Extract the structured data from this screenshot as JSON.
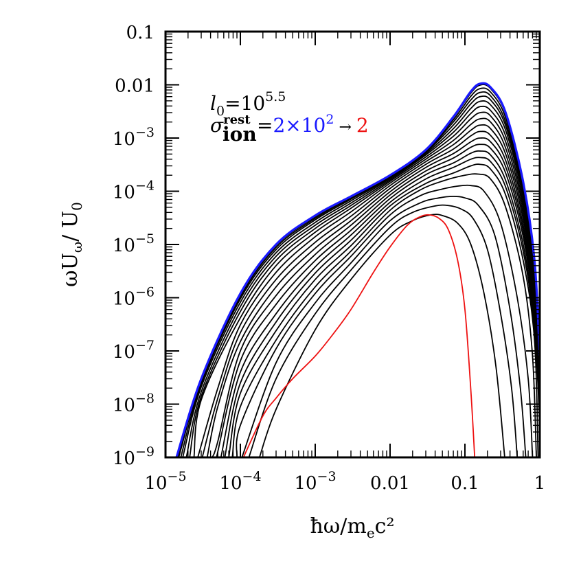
{
  "chart_data": {
    "type": "line",
    "x_scale": "log",
    "y_scale": "log",
    "xlim": [
      1e-05,
      1
    ],
    "ylim": [
      1e-09,
      0.1
    ],
    "xlabel": {
      "main": "ħω/m",
      "sub": "e",
      "tail": "c²"
    },
    "ylabel": {
      "pre": "ωU",
      "sub": "ω",
      "post": "/ U",
      "sub2": "0"
    },
    "x_ticks": [
      {
        "value": 1e-05,
        "base": "10",
        "exp": "−5",
        "plain": ""
      },
      {
        "value": 0.0001,
        "base": "10",
        "exp": "−4",
        "plain": ""
      },
      {
        "value": 0.001,
        "base": "10",
        "exp": "−3",
        "plain": ""
      },
      {
        "value": 0.01,
        "base": "",
        "exp": "",
        "plain": "0.01"
      },
      {
        "value": 0.1,
        "base": "",
        "exp": "",
        "plain": "0.1"
      },
      {
        "value": 1,
        "base": "",
        "exp": "",
        "plain": "1"
      }
    ],
    "y_ticks": [
      {
        "value": 0.1,
        "base": "",
        "exp": "",
        "plain": "0.1"
      },
      {
        "value": 0.01,
        "base": "",
        "exp": "",
        "plain": "0.01"
      },
      {
        "value": 0.001,
        "base": "10",
        "exp": "−3",
        "plain": ""
      },
      {
        "value": 0.0001,
        "base": "10",
        "exp": "−4",
        "plain": ""
      },
      {
        "value": 1e-05,
        "base": "10",
        "exp": "−5",
        "plain": ""
      },
      {
        "value": 1e-06,
        "base": "10",
        "exp": "−6",
        "plain": ""
      },
      {
        "value": 1e-07,
        "base": "10",
        "exp": "−7",
        "plain": ""
      },
      {
        "value": 1e-08,
        "base": "10",
        "exp": "−8",
        "plain": ""
      },
      {
        "value": 1e-09,
        "base": "10",
        "exp": "−9",
        "plain": ""
      }
    ],
    "annotation": {
      "line1_sym": "l",
      "line1_sub": "0",
      "line1_eq": "=10",
      "line1_exp": "5.5",
      "line2_sym": "σ",
      "line2_sup": "rest",
      "line2_sub": "ion",
      "line2_eq": "=",
      "line2_start": "2×10",
      "line2_start_exp": "2",
      "line2_arrow": " → ",
      "line2_end": "2"
    },
    "colors": {
      "first": "#1a1aff",
      "last": "#ee1111",
      "middle": "#000000"
    },
    "series": [
      {
        "color": "#1a1aff",
        "x": [
          1.4e-05,
          3e-05,
          0.0001,
          0.0003,
          0.001,
          0.003,
          0.01,
          0.03,
          0.07,
          0.12,
          0.16,
          0.22,
          0.35,
          0.6,
          0.85,
          1.0
        ],
        "y": [
          1e-09,
          3e-08,
          1.2e-06,
          1e-05,
          3.5e-05,
          8e-05,
          0.0002,
          0.0006,
          0.0025,
          0.0075,
          0.0105,
          0.009,
          0.003,
          0.00015,
          5e-06,
          8e-08
        ]
      },
      {
        "color": "#000000",
        "x": [
          1.45e-05,
          3e-05,
          0.0001,
          0.0003,
          0.001,
          0.003,
          0.01,
          0.03,
          0.07,
          0.12,
          0.16,
          0.22,
          0.35,
          0.6,
          0.85,
          1.0
        ],
        "y": [
          1e-09,
          2.9e-08,
          1.15e-06,
          9.5e-06,
          3.3e-05,
          7.8e-05,
          0.000197,
          0.00059,
          0.0024,
          0.007,
          0.0099,
          0.0085,
          0.0028,
          0.00014,
          4.5e-06,
          7e-08
        ]
      },
      {
        "color": "#000000",
        "x": [
          1.5e-05,
          3e-05,
          0.0001,
          0.0003,
          0.001,
          0.003,
          0.01,
          0.03,
          0.07,
          0.12,
          0.16,
          0.22,
          0.35,
          0.6,
          0.85,
          1.0
        ],
        "y": [
          1e-09,
          2.7e-08,
          1.05e-06,
          8.8e-06,
          3.1e-05,
          7.5e-05,
          0.000193,
          0.00058,
          0.0022,
          0.0061,
          0.0085,
          0.0073,
          0.0024,
          0.00012,
          4e-06,
          6e-08
        ]
      },
      {
        "color": "#000000",
        "x": [
          1.6e-05,
          3e-05,
          0.0001,
          0.0003,
          0.001,
          0.003,
          0.01,
          0.03,
          0.07,
          0.12,
          0.16,
          0.22,
          0.35,
          0.6,
          0.85,
          1.0
        ],
        "y": [
          1e-09,
          2.4e-08,
          9.5e-07,
          8e-06,
          2.9e-05,
          7.1e-05,
          0.000188,
          0.00056,
          0.002,
          0.0052,
          0.0072,
          0.0062,
          0.002,
          0.000105,
          3.5e-06,
          5e-08
        ]
      },
      {
        "color": "#000000",
        "x": [
          1.7e-05,
          3e-05,
          0.0001,
          0.0003,
          0.001,
          0.003,
          0.01,
          0.03,
          0.07,
          0.12,
          0.16,
          0.22,
          0.35,
          0.6,
          0.85,
          1.0
        ],
        "y": [
          1e-09,
          2.1e-08,
          8.2e-07,
          7e-06,
          2.6e-05,
          6.6e-05,
          0.000182,
          0.00054,
          0.00175,
          0.0044,
          0.006,
          0.0052,
          0.0017,
          9e-05,
          3e-06,
          4e-08
        ]
      },
      {
        "color": "#000000",
        "x": [
          1.9e-05,
          3e-05,
          0.0001,
          0.0003,
          0.001,
          0.003,
          0.01,
          0.03,
          0.07,
          0.12,
          0.16,
          0.22,
          0.35,
          0.6,
          0.85,
          1.0
        ],
        "y": [
          1e-09,
          1.7e-08,
          6.8e-07,
          6e-06,
          2.3e-05,
          6e-05,
          0.000174,
          0.00051,
          0.0015,
          0.0036,
          0.0049,
          0.0042,
          0.0014,
          7.5e-05,
          2.5e-06,
          3.5e-08
        ]
      },
      {
        "color": "#000000",
        "x": [
          2.1e-05,
          3e-05,
          0.0001,
          0.0003,
          0.001,
          0.003,
          0.01,
          0.03,
          0.07,
          0.12,
          0.16,
          0.22,
          0.35,
          0.6,
          0.85,
          1.0
        ],
        "y": [
          1e-09,
          1.4e-08,
          5.5e-07,
          5e-06,
          2e-05,
          5.4e-05,
          0.000164,
          0.00048,
          0.00128,
          0.0029,
          0.0039,
          0.0033,
          0.0011,
          6e-05,
          2e-06,
          3e-08
        ]
      },
      {
        "color": "#000000",
        "x": [
          2.4e-05,
          3e-05,
          0.0001,
          0.0003,
          0.001,
          0.003,
          0.01,
          0.03,
          0.07,
          0.12,
          0.16,
          0.22,
          0.35,
          0.6,
          0.85,
          1.0
        ],
        "y": [
          1e-09,
          1.2e-08,
          4.2e-07,
          4e-06,
          1.7e-05,
          4.8e-05,
          0.000154,
          0.00044,
          0.00108,
          0.0023,
          0.003,
          0.0026,
          0.00085,
          4.8e-05,
          1.6e-06,
          2.5e-08
        ]
      },
      {
        "color": "#000000",
        "x": [
          2.7e-05,
          5e-05,
          0.0001,
          0.0003,
          0.001,
          0.003,
          0.01,
          0.03,
          0.07,
          0.12,
          0.16,
          0.22,
          0.35,
          0.6,
          0.85,
          1.0
        ],
        "y": [
          1e-09,
          2e-08,
          3.1e-07,
          3e-06,
          1.4e-05,
          4.1e-05,
          0.000142,
          0.0004,
          0.0009,
          0.0018,
          0.0023,
          0.002,
          0.00065,
          3.8e-05,
          1.3e-06,
          2e-08
        ]
      },
      {
        "color": "#000000",
        "x": [
          3.1e-05,
          5e-05,
          0.0001,
          0.0003,
          0.001,
          0.003,
          0.01,
          0.03,
          0.07,
          0.12,
          0.16,
          0.22,
          0.35,
          0.6,
          0.85,
          1.0
        ],
        "y": [
          1e-09,
          1.3e-08,
          2.2e-07,
          2.2e-06,
          1.1e-05,
          3.4e-05,
          0.000128,
          0.00036,
          0.00075,
          0.0014,
          0.00175,
          0.0015,
          0.0005,
          3e-05,
          1e-06,
          1.5e-08
        ]
      },
      {
        "color": "#000000",
        "x": [
          3.6e-05,
          5e-05,
          0.0001,
          0.0003,
          0.001,
          0.003,
          0.01,
          0.03,
          0.07,
          0.12,
          0.16,
          0.22,
          0.35,
          0.6,
          0.85,
          1.0
        ],
        "y": [
          1e-09,
          9e-09,
          1.5e-07,
          1.6e-06,
          8.5e-06,
          2.8e-05,
          0.000113,
          0.00032,
          0.00062,
          0.0011,
          0.00133,
          0.00112,
          0.00038,
          2.3e-05,
          8e-07,
          1.2e-08
        ]
      },
      {
        "color": "#000000",
        "x": [
          4.2e-05,
          5e-05,
          0.0001,
          0.0003,
          0.001,
          0.003,
          0.01,
          0.03,
          0.07,
          0.12,
          0.16,
          0.22,
          0.35,
          0.6,
          0.85,
          1.0
        ],
        "y": [
          1e-09,
          2e-09,
          1e-07,
          1.1e-06,
          6.5e-06,
          2.3e-05,
          9.8e-05,
          0.00028,
          0.00051,
          0.00085,
          0.001,
          0.00085,
          0.00029,
          1.8e-05,
          6e-07,
          1e-08
        ]
      },
      {
        "color": "#000000",
        "x": [
          4.8e-05,
          0.0001,
          0.0003,
          0.001,
          0.003,
          0.01,
          0.03,
          0.07,
          0.12,
          0.16,
          0.22,
          0.35,
          0.6,
          0.85,
          1.0
        ],
        "y": [
          1e-09,
          6.5e-08,
          7.5e-07,
          5e-06,
          1.85e-05,
          8.5e-05,
          0.00024,
          0.00042,
          0.00067,
          0.00076,
          0.00064,
          0.00022,
          1.4e-05,
          4.5e-07,
          8e-09
        ]
      },
      {
        "color": "#000000",
        "x": [
          5.5e-05,
          0.0001,
          0.0003,
          0.001,
          0.003,
          0.01,
          0.03,
          0.07,
          0.12,
          0.16,
          0.22,
          0.35,
          0.6,
          0.85,
          1.0
        ],
        "y": [
          1e-09,
          4e-08,
          5e-07,
          3.8e-06,
          1.5e-05,
          7.3e-05,
          0.000205,
          0.00034,
          0.00052,
          0.00057,
          0.00048,
          0.00016,
          1e-05,
          3.5e-07,
          6e-09
        ]
      },
      {
        "color": "#000000",
        "x": [
          6.2e-05,
          0.0001,
          0.0003,
          0.001,
          0.003,
          0.01,
          0.03,
          0.07,
          0.12,
          0.16,
          0.22,
          0.35,
          0.6,
          0.85,
          1.0
        ],
        "y": [
          1e-09,
          2.5e-08,
          3.5e-07,
          2.9e-06,
          1.2e-05,
          6.2e-05,
          0.00017,
          0.00028,
          0.0004,
          0.00043,
          0.00036,
          0.00012,
          7.5e-06,
          2.5e-07,
          4e-09
        ]
      },
      {
        "color": "#000000",
        "x": [
          7e-05,
          0.0001,
          0.0003,
          0.001,
          0.003,
          0.01,
          0.03,
          0.07,
          0.12,
          0.16,
          0.22,
          0.35,
          0.6,
          0.85,
          0.95
        ],
        "y": [
          1e-09,
          1.6e-08,
          2.4e-07,
          2.2e-06,
          9.5e-06,
          5.3e-05,
          0.00014,
          0.00022,
          0.0003,
          0.00032,
          0.00026,
          8.5e-05,
          5e-06,
          1.6e-07,
          1e-09
        ]
      },
      {
        "color": "#000000",
        "x": [
          7.8e-05,
          0.0001,
          0.0003,
          0.001,
          0.003,
          0.01,
          0.025,
          0.05,
          0.1,
          0.15,
          0.22,
          0.35,
          0.6,
          0.8,
          0.9
        ],
        "y": [
          1e-09,
          9e-09,
          1.6e-07,
          1.6e-06,
          7.5e-06,
          4.4e-05,
          0.000105,
          0.000155,
          0.0002,
          0.00021,
          0.00017,
          5e-05,
          2.5e-06,
          8e-08,
          1e-09
        ]
      },
      {
        "color": "#000000",
        "x": [
          9e-05,
          0.0001,
          0.0003,
          0.001,
          0.003,
          0.01,
          0.025,
          0.05,
          0.08,
          0.12,
          0.18,
          0.3,
          0.5,
          0.7,
          0.8
        ],
        "y": [
          1e-09,
          4e-09,
          1.1e-07,
          1.2e-06,
          6e-06,
          3.6e-05,
          8.2e-05,
          0.00011,
          0.000125,
          0.000128,
          0.0001,
          2.5e-05,
          1e-06,
          3e-08,
          1e-09
        ]
      },
      {
        "color": "#000000",
        "x": [
          0.000105,
          0.0003,
          0.001,
          0.003,
          0.01,
          0.025,
          0.045,
          0.07,
          0.1,
          0.15,
          0.25,
          0.4,
          0.55,
          0.65
        ],
        "y": [
          1e-09,
          6e-08,
          8e-07,
          4.5e-06,
          2.8e-05,
          6e-05,
          7.5e-05,
          8e-05,
          7.5e-05,
          5.5e-05,
          1.5e-05,
          6e-07,
          2e-08,
          1e-09
        ]
      },
      {
        "color": "#000000",
        "x": [
          0.00013,
          0.0003,
          0.001,
          0.003,
          0.01,
          0.02,
          0.04,
          0.06,
          0.09,
          0.13,
          0.2,
          0.3,
          0.42,
          0.5
        ],
        "y": [
          1e-09,
          3e-08,
          5e-07,
          3.3e-06,
          2.1e-05,
          4e-05,
          5.3e-05,
          5.4e-05,
          4.6e-05,
          3e-05,
          8e-06,
          5e-07,
          2e-08,
          1e-09
        ]
      },
      {
        "color": "#000000",
        "x": [
          0.00018,
          0.0003,
          0.001,
          0.003,
          0.01,
          0.02,
          0.035,
          0.05,
          0.08,
          0.12,
          0.18,
          0.26,
          0.34
        ],
        "y": [
          1e-09,
          8e-09,
          2.5e-07,
          2.2e-06,
          1.5e-05,
          2.8e-05,
          3.6e-05,
          3.5e-05,
          2.5e-05,
          1e-05,
          1.2e-06,
          5e-08,
          1e-09
        ]
      },
      {
        "color": "#ee1111",
        "x": [
          0.00011,
          0.0002,
          0.0003,
          0.0005,
          0.001,
          0.0017,
          0.003,
          0.006,
          0.01,
          0.017,
          0.025,
          0.033,
          0.045,
          0.06,
          0.08,
          0.1,
          0.12,
          0.135
        ],
        "y": [
          1e-09,
          6e-09,
          1.3e-08,
          3e-08,
          8e-08,
          2e-07,
          6e-07,
          3e-06,
          9e-06,
          2.3e-05,
          3.3e-05,
          3.6e-05,
          3.1e-05,
          1.9e-05,
          5e-06,
          6e-07,
          1.8e-08,
          1e-09
        ]
      }
    ]
  }
}
